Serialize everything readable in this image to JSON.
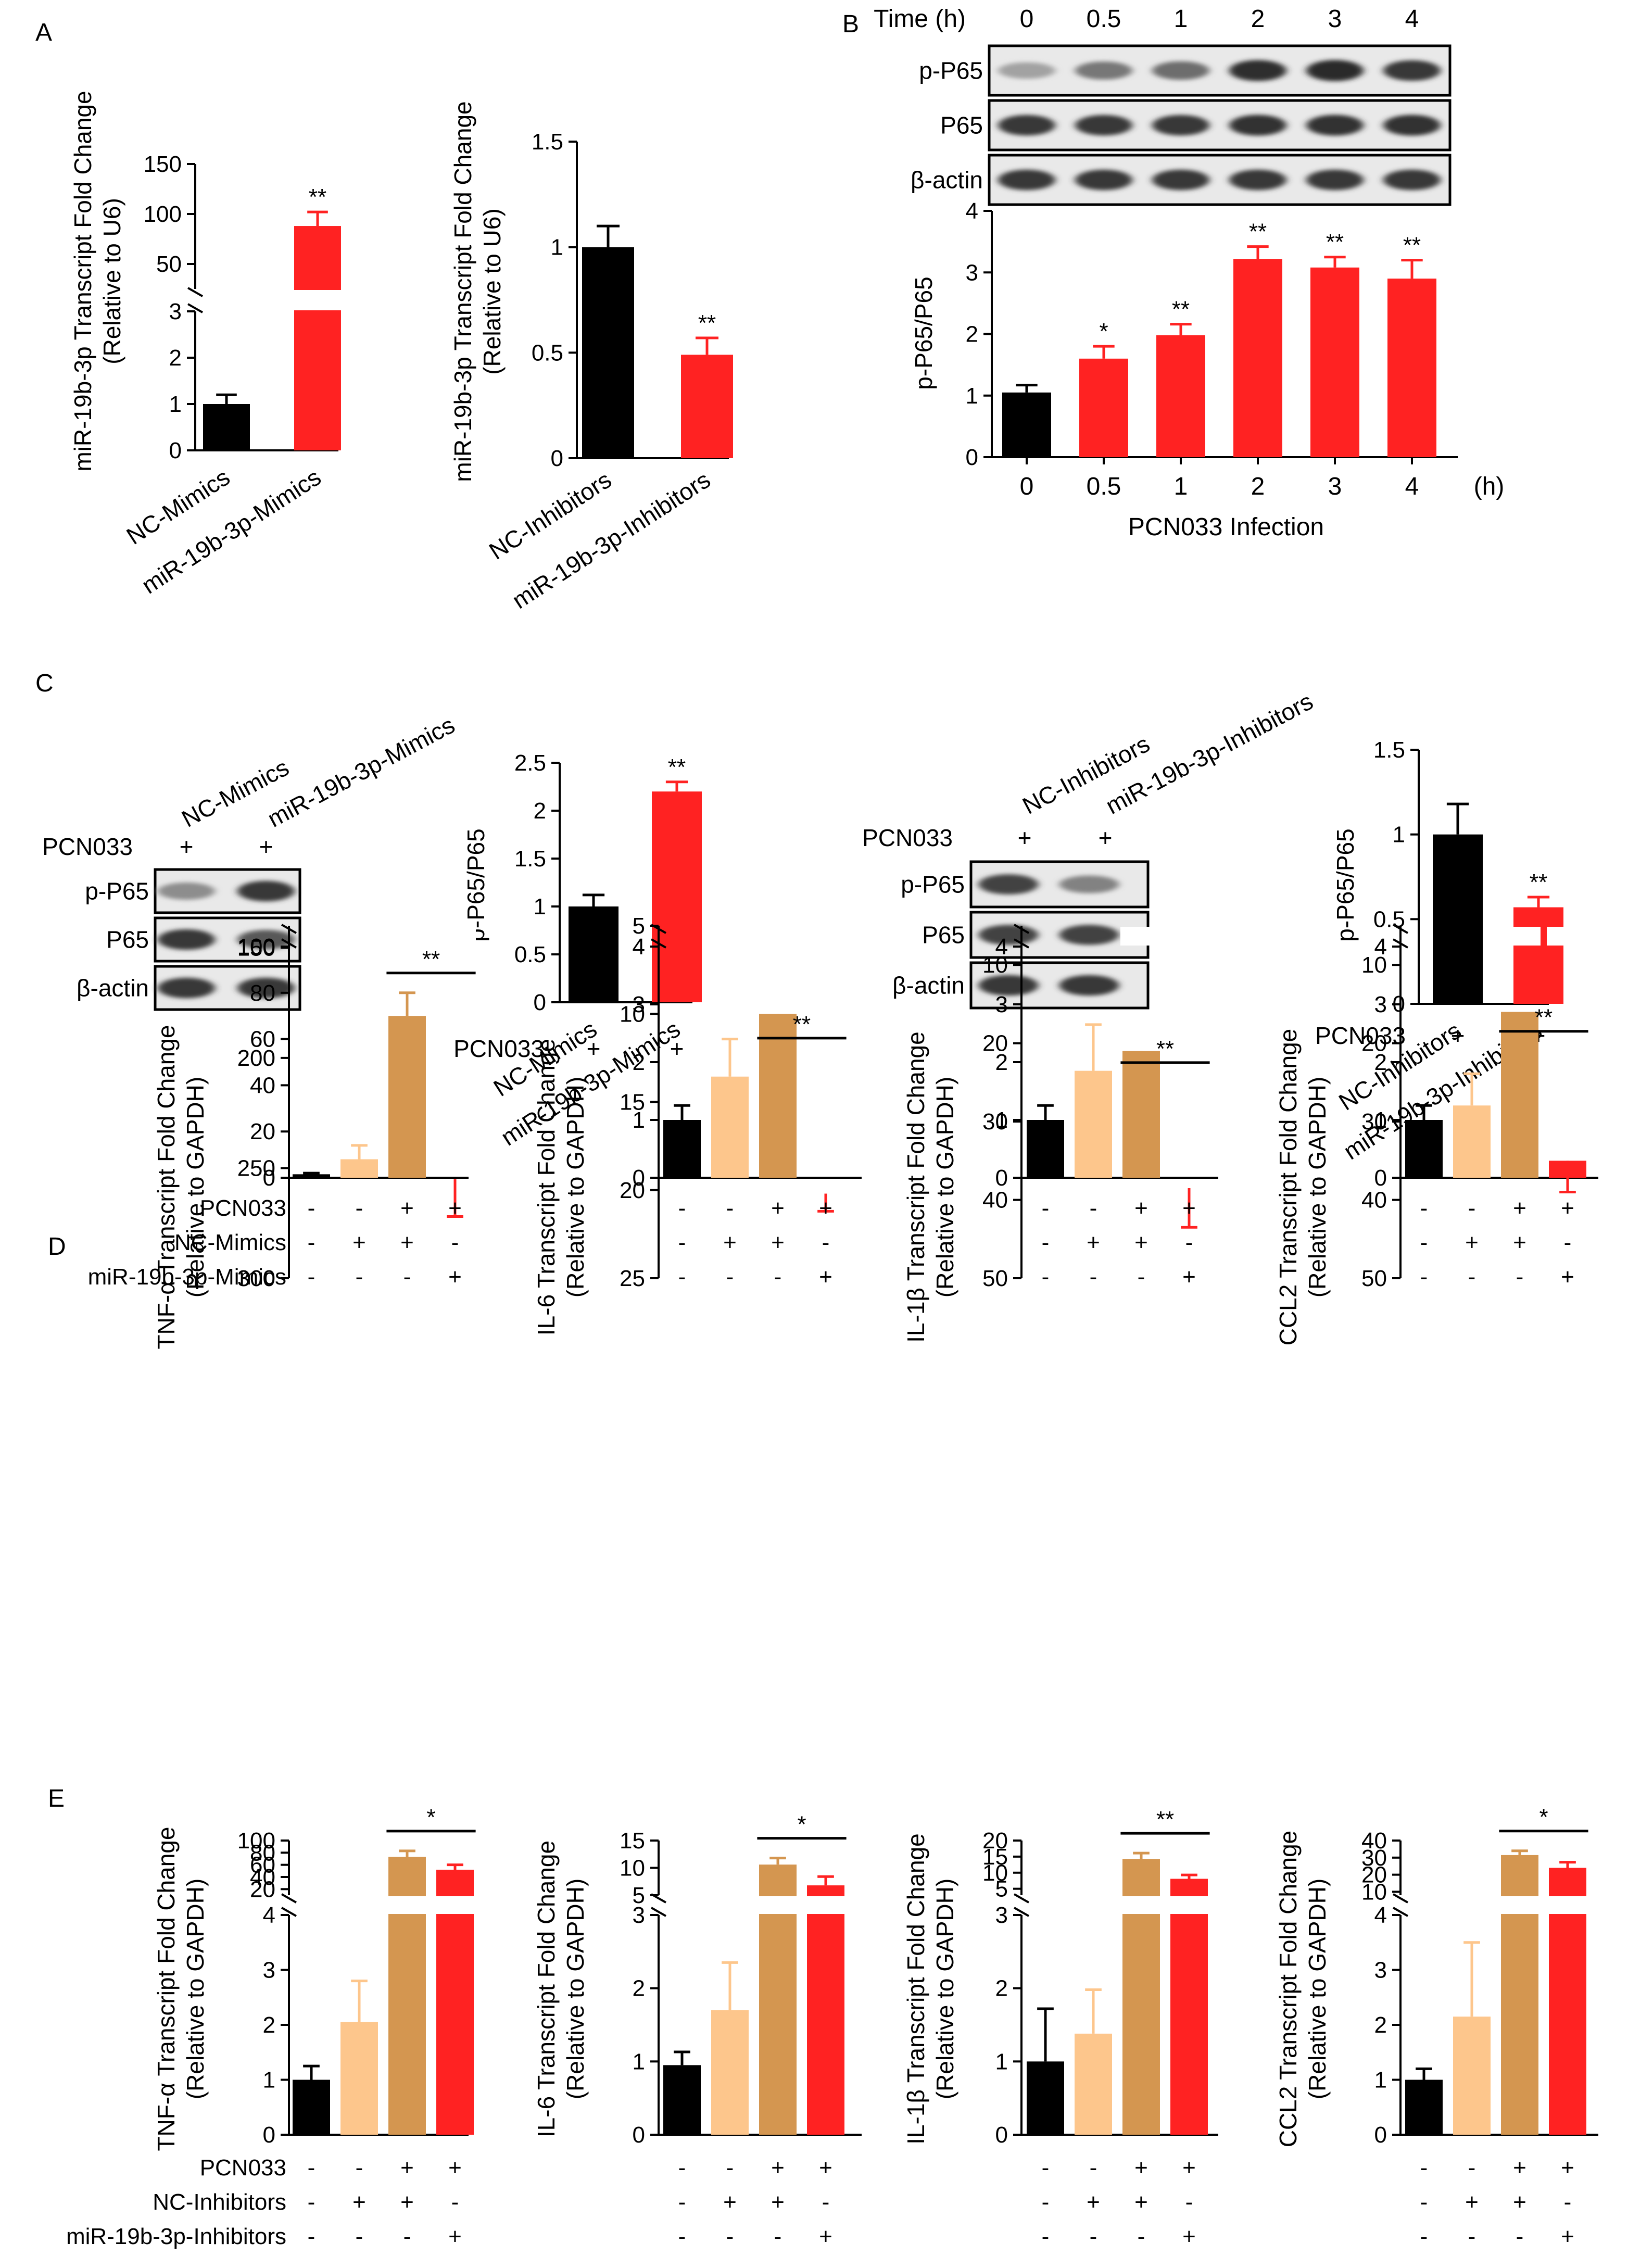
{
  "colors": {
    "black": "#000000",
    "red": "#ff2222",
    "tan": "#d49650",
    "peach": "#fdc68c"
  },
  "panel_labels": {
    "A": "A",
    "B": "B",
    "C": "C",
    "D": "D",
    "E": "E"
  },
  "chart_data": [
    {
      "id": "A1",
      "type": "bar",
      "ylabel1": "miR-19b-3p Transcript Fold Change",
      "ylabel2": "(Relative to U6)",
      "axis_breaks": [
        {
          "range": [
            0,
            3
          ],
          "ticks": [
            0,
            1,
            2,
            3
          ]
        },
        {
          "range": [
            25,
            150
          ],
          "ticks": [
            50,
            100,
            150
          ]
        }
      ],
      "categories": [
        "NC-Mimics",
        "miR-19b-3p-Mimics"
      ],
      "values": [
        1.0,
        88
      ],
      "errors": [
        0.2,
        14
      ],
      "colors": [
        "black",
        "red"
      ],
      "sig": [
        {
          "index": 1,
          "text": "**"
        }
      ]
    },
    {
      "id": "A2",
      "type": "bar",
      "ylabel1": "miR-19b-3p Transcript Fold Change",
      "ylabel2": "(Relative to U6)",
      "ylim": [
        0,
        1.5
      ],
      "yticks": [
        "0",
        "0.5",
        "1",
        "1.5"
      ],
      "categories": [
        "NC-Inhibitors",
        "miR-19b-3p-Inhibitors"
      ],
      "values": [
        1.0,
        0.49
      ],
      "errors": [
        0.1,
        0.08
      ],
      "colors": [
        "black",
        "red"
      ],
      "sig": [
        {
          "index": 1,
          "text": "**"
        }
      ]
    },
    {
      "id": "B",
      "type": "bar",
      "ylabel1": "p-P65/P65",
      "xlabel": "PCN033 Infection",
      "unit": "(h)",
      "ylim": [
        0,
        4
      ],
      "yticks": [
        "0",
        "1",
        "2",
        "3",
        "4"
      ],
      "categories": [
        "0",
        "0.5",
        "1",
        "2",
        "3",
        "4"
      ],
      "values": [
        1.05,
        1.6,
        1.98,
        3.22,
        3.08,
        2.9
      ],
      "errors": [
        0.12,
        0.2,
        0.18,
        0.2,
        0.17,
        0.3
      ],
      "colors": [
        "black",
        "red",
        "red",
        "red",
        "red",
        "red"
      ],
      "sig": [
        {
          "index": 1,
          "text": "*"
        },
        {
          "index": 2,
          "text": "**"
        },
        {
          "index": 3,
          "text": "**"
        },
        {
          "index": 4,
          "text": "**"
        },
        {
          "index": 5,
          "text": "**"
        }
      ]
    },
    {
      "id": "C1",
      "type": "bar",
      "ylabel1": "p-P65/P65",
      "ylim": [
        0,
        2.5
      ],
      "yticks": [
        "0",
        "0.5",
        "1",
        "1.5",
        "2",
        "2.5"
      ],
      "categories": [
        "NC-Mimics",
        "miR-19b-3p-Mimics"
      ],
      "values": [
        1.0,
        2.2
      ],
      "errors": [
        0.12,
        0.1
      ],
      "colors": [
        "black",
        "red"
      ],
      "sig": [
        {
          "index": 1,
          "text": "**"
        }
      ],
      "pcn_label": "PCN033",
      "pcn_signs": [
        "+",
        "+"
      ]
    },
    {
      "id": "C2",
      "type": "bar",
      "ylabel1": "p-P65/P65",
      "ylim": [
        0,
        1.5
      ],
      "yticks": [
        "0",
        "0.5",
        "1",
        "1.5"
      ],
      "categories": [
        "NC-Inhibitors",
        "miR-19b-3p-Inhibitors"
      ],
      "values": [
        1.0,
        0.57
      ],
      "errors": [
        0.18,
        0.06
      ],
      "colors": [
        "black",
        "red"
      ],
      "sig": [
        {
          "index": 1,
          "text": "**"
        }
      ],
      "pcn_label": "PCN033",
      "pcn_signs": [
        "+",
        "+"
      ]
    },
    {
      "id": "D1",
      "type": "bar",
      "ylabel1": "TNF-α Transcript Fold Change",
      "ylabel2": "(Relative to GAPDH)",
      "axis_breaks": [
        {
          "range": [
            0,
            100
          ],
          "ticks": [
            0,
            20,
            40,
            60,
            80,
            100
          ]
        },
        {
          "range": [
            140,
            300
          ],
          "ticks": [
            150,
            200,
            250,
            300
          ]
        }
      ],
      "values": [
        1.5,
        8,
        70,
        255
      ],
      "errors": [
        0.5,
        6,
        10,
        17
      ],
      "colors": [
        "black",
        "peach",
        "tan",
        "red"
      ],
      "sig": [
        {
          "span": [
            2,
            3
          ],
          "text": "**"
        }
      ]
    },
    {
      "id": "D2",
      "type": "bar",
      "ylabel1": "IL-6 Transcript Fold Change",
      "ylabel2": "(Relative to GAPDH)",
      "axis_breaks": [
        {
          "range": [
            0,
            4
          ],
          "ticks": [
            0,
            1,
            2,
            3,
            4
          ]
        },
        {
          "range": [
            5,
            25
          ],
          "ticks": [
            5,
            10,
            15,
            20,
            25
          ]
        }
      ],
      "values": [
        1.0,
        1.75,
        10,
        20.2
      ],
      "errors": [
        0.25,
        0.65,
        2.5,
        1.0
      ],
      "colors": [
        "black",
        "peach",
        "tan",
        "red"
      ],
      "sig": [
        {
          "span": [
            2,
            3
          ],
          "text": "**"
        }
      ]
    },
    {
      "id": "D3",
      "type": "bar",
      "ylabel1": "IL-1β Transcript Fold Change",
      "ylabel2": "(Relative to GAPDH)",
      "axis_breaks": [
        {
          "range": [
            0,
            4
          ],
          "ticks": [
            0,
            1,
            2,
            3,
            4
          ]
        },
        {
          "range": [
            5,
            50
          ],
          "ticks": [
            10,
            20,
            30,
            40,
            50
          ]
        }
      ],
      "values": [
        1.0,
        1.85,
        21,
        38.5
      ],
      "errors": [
        0.25,
        0.8,
        4,
        5
      ],
      "colors": [
        "black",
        "peach",
        "tan",
        "red"
      ],
      "sig": [
        {
          "span": [
            2,
            3
          ],
          "text": "**"
        }
      ]
    },
    {
      "id": "D4",
      "type": "bar",
      "ylabel1": "CCL2 Transcript Fold Change",
      "ylabel2": "(Relative to GAPDH)",
      "axis_breaks": [
        {
          "range": [
            0,
            4
          ],
          "ticks": [
            0,
            1,
            2,
            3,
            4
          ]
        },
        {
          "range": [
            5,
            50
          ],
          "ticks": [
            10,
            20,
            30,
            40,
            50
          ]
        }
      ],
      "values": [
        1.0,
        1.25,
        16,
        35
      ],
      "errors": [
        0.25,
        0.55,
        5,
        4
      ],
      "colors": [
        "black",
        "peach",
        "tan",
        "red"
      ],
      "sig": [
        {
          "span": [
            2,
            3
          ],
          "text": "**"
        }
      ]
    },
    {
      "id": "E1",
      "type": "bar",
      "ylabel1": "TNF-α Transcript Fold Change",
      "ylabel2": "(Relative to GAPDH)",
      "axis_breaks": [
        {
          "range": [
            0,
            4
          ],
          "ticks": [
            0,
            1,
            2,
            3,
            4
          ]
        },
        {
          "range": [
            10,
            100
          ],
          "ticks": [
            20,
            40,
            60,
            80,
            100
          ]
        }
      ],
      "values": [
        1.0,
        2.05,
        73,
        52
      ],
      "errors": [
        0.25,
        0.75,
        10,
        8
      ],
      "colors": [
        "black",
        "peach",
        "tan",
        "red"
      ],
      "sig": [
        {
          "span": [
            2,
            3
          ],
          "text": "*"
        }
      ]
    },
    {
      "id": "E2",
      "type": "bar",
      "ylabel1": "IL-6 Transcript Fold Change",
      "ylabel2": "(Relative to GAPDH)",
      "axis_breaks": [
        {
          "range": [
            0,
            3
          ],
          "ticks": [
            0,
            1,
            2,
            3
          ]
        },
        {
          "range": [
            5,
            15
          ],
          "ticks": [
            5,
            10,
            15
          ]
        }
      ],
      "values": [
        0.95,
        1.7,
        10.6,
        6.8
      ],
      "errors": [
        0.18,
        0.65,
        1.2,
        1.6
      ],
      "colors": [
        "black",
        "peach",
        "tan",
        "red"
      ],
      "sig": [
        {
          "span": [
            2,
            3
          ],
          "text": "*"
        }
      ]
    },
    {
      "id": "E3",
      "type": "bar",
      "ylabel1": "IL-1β Transcript Fold Change",
      "ylabel2": "(Relative to GAPDH)",
      "axis_breaks": [
        {
          "range": [
            0,
            3
          ],
          "ticks": [
            0,
            1,
            2,
            3
          ]
        },
        {
          "range": [
            3,
            20
          ],
          "ticks": [
            5,
            10,
            15,
            20
          ]
        }
      ],
      "values": [
        1.0,
        1.38,
        14.3,
        8.1
      ],
      "errors": [
        0.72,
        0.6,
        1.8,
        1.2
      ],
      "colors": [
        "black",
        "peach",
        "tan",
        "red"
      ],
      "sig": [
        {
          "span": [
            2,
            3
          ],
          "text": "**"
        }
      ]
    },
    {
      "id": "E4",
      "type": "bar",
      "ylabel1": "CCL2 Transcript Fold Change",
      "ylabel2": "(Relative to GAPDH)",
      "axis_breaks": [
        {
          "range": [
            0,
            4
          ],
          "ticks": [
            0,
            1,
            2,
            3,
            4
          ]
        },
        {
          "range": [
            8,
            40
          ],
          "ticks": [
            10,
            20,
            30,
            40
          ]
        }
      ],
      "values": [
        1.0,
        2.15,
        31.5,
        24
      ],
      "errors": [
        0.2,
        1.35,
        2.5,
        3.3
      ],
      "colors": [
        "black",
        "peach",
        "tan",
        "red"
      ],
      "sig": [
        {
          "span": [
            2,
            3
          ],
          "text": "*"
        }
      ]
    }
  ],
  "blot_B": {
    "time_label": "Time (h)",
    "times": [
      "0",
      "0.5",
      "1",
      "2",
      "3",
      "4"
    ],
    "rows": [
      "p-P65",
      "P65",
      "β-actin"
    ],
    "intensity": [
      [
        0.35,
        0.55,
        0.6,
        0.9,
        0.92,
        0.85
      ],
      [
        0.85,
        0.85,
        0.85,
        0.88,
        0.88,
        0.88
      ],
      [
        0.85,
        0.85,
        0.85,
        0.85,
        0.85,
        0.85
      ]
    ]
  },
  "blot_C1": {
    "lanes": [
      "NC-Mimics",
      "miR-19b-3p-Mimics"
    ],
    "pcn_label": "PCN033",
    "signs": [
      "+",
      "+"
    ],
    "rows": [
      "p-P65",
      "P65",
      "β-actin"
    ],
    "intensity": [
      [
        0.45,
        0.85
      ],
      [
        0.85,
        0.7
      ],
      [
        0.85,
        0.85
      ]
    ]
  },
  "blot_C2": {
    "lanes": [
      "NC-Inhibitors",
      "miR-19b-3p-Inhibitors"
    ],
    "pcn_label": "PCN033",
    "signs": [
      "+",
      "+"
    ],
    "rows": [
      "p-P65",
      "P65",
      "β-actin"
    ],
    "intensity": [
      [
        0.8,
        0.5
      ],
      [
        0.8,
        0.8
      ],
      [
        0.85,
        0.85
      ]
    ]
  },
  "treatment_D": {
    "rows": [
      {
        "label": "PCN033",
        "signs": [
          "-",
          "-",
          "+",
          "+"
        ]
      },
      {
        "label": "NC-Mimics",
        "signs": [
          "-",
          "+",
          "+",
          "-"
        ]
      },
      {
        "label": "miR-19b-3p-Mimics",
        "signs": [
          "-",
          "-",
          "-",
          "+"
        ]
      }
    ]
  },
  "treatment_E": {
    "rows": [
      {
        "label": "PCN033",
        "signs": [
          "-",
          "-",
          "+",
          "+"
        ]
      },
      {
        "label": "NC-Inhibitors",
        "signs": [
          "-",
          "+",
          "+",
          "-"
        ]
      },
      {
        "label": "miR-19b-3p-Inhibitors",
        "signs": [
          "-",
          "-",
          "-",
          "+"
        ]
      }
    ]
  }
}
